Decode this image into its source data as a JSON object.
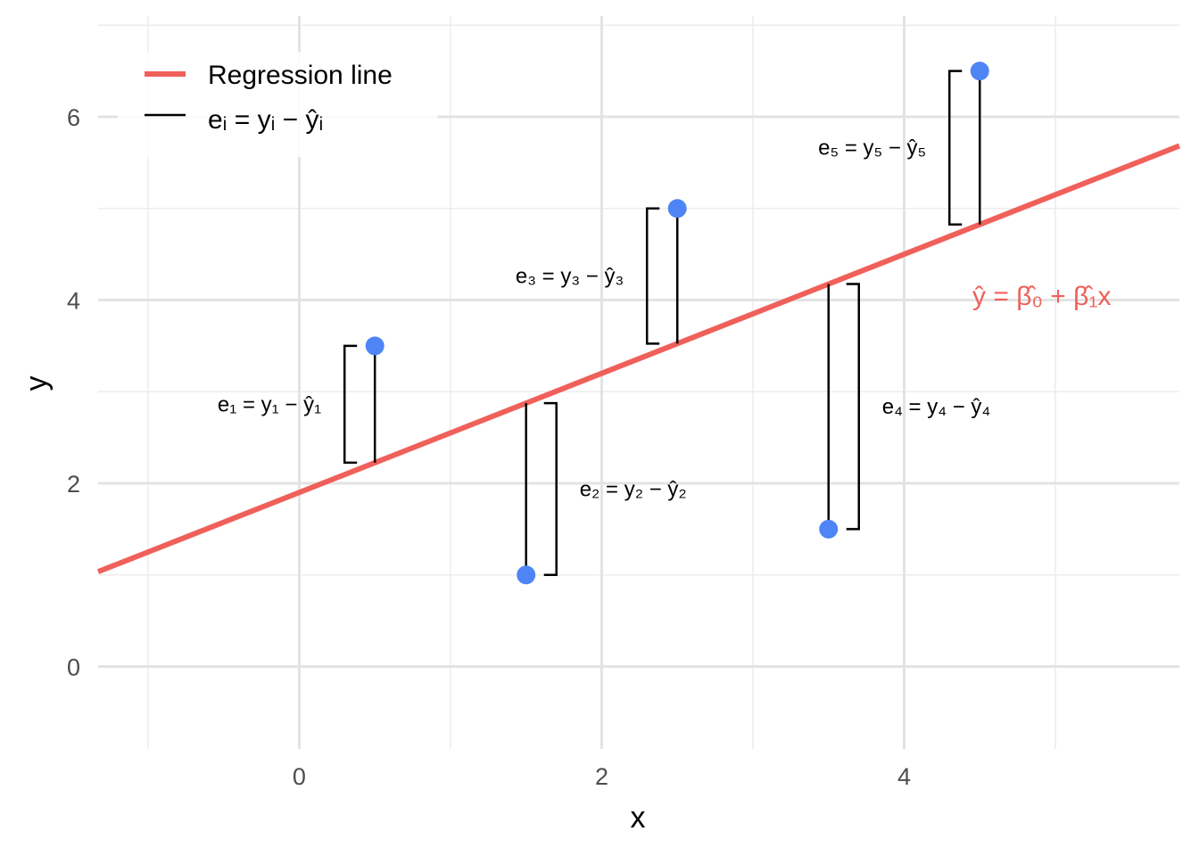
{
  "chart_data": {
    "type": "scatter",
    "xlabel": "x",
    "ylabel": "y",
    "xlim": [
      -1.33,
      5.82
    ],
    "ylim": [
      -0.9,
      7.1
    ],
    "x_ticks": [
      0,
      2,
      4
    ],
    "y_ticks": [
      0,
      2,
      4,
      6
    ],
    "grid": true,
    "colors": {
      "line": "#f0605a",
      "points": "#4f84f5",
      "residual": "#000000"
    },
    "points": [
      {
        "x": 0.5,
        "y": 3.5
      },
      {
        "x": 1.5,
        "y": 1.0
      },
      {
        "x": 2.5,
        "y": 5.0
      },
      {
        "x": 3.5,
        "y": 1.5
      },
      {
        "x": 4.5,
        "y": 6.5
      }
    ],
    "regression": {
      "intercept": 1.9,
      "slope": 0.65
    },
    "residual_labels": [
      {
        "i": "1",
        "text": "e₁ = y₁ − ŷ₁"
      },
      {
        "i": "2",
        "text": "e₂ = y₂ − ŷ₂"
      },
      {
        "i": "3",
        "text": "e₃ = y₃ − ŷ₃"
      },
      {
        "i": "4",
        "text": "e₄ = y₄ − ŷ₄"
      },
      {
        "i": "5",
        "text": "e₅ = y₅ − ŷ₅"
      }
    ],
    "legend": {
      "position": "top-left",
      "entries": [
        {
          "label": "Regression line"
        },
        {
          "label": "eᵢ = yᵢ − ŷᵢ"
        }
      ]
    },
    "equation_label": "ŷ = β̂₀ + β̂₁x"
  }
}
